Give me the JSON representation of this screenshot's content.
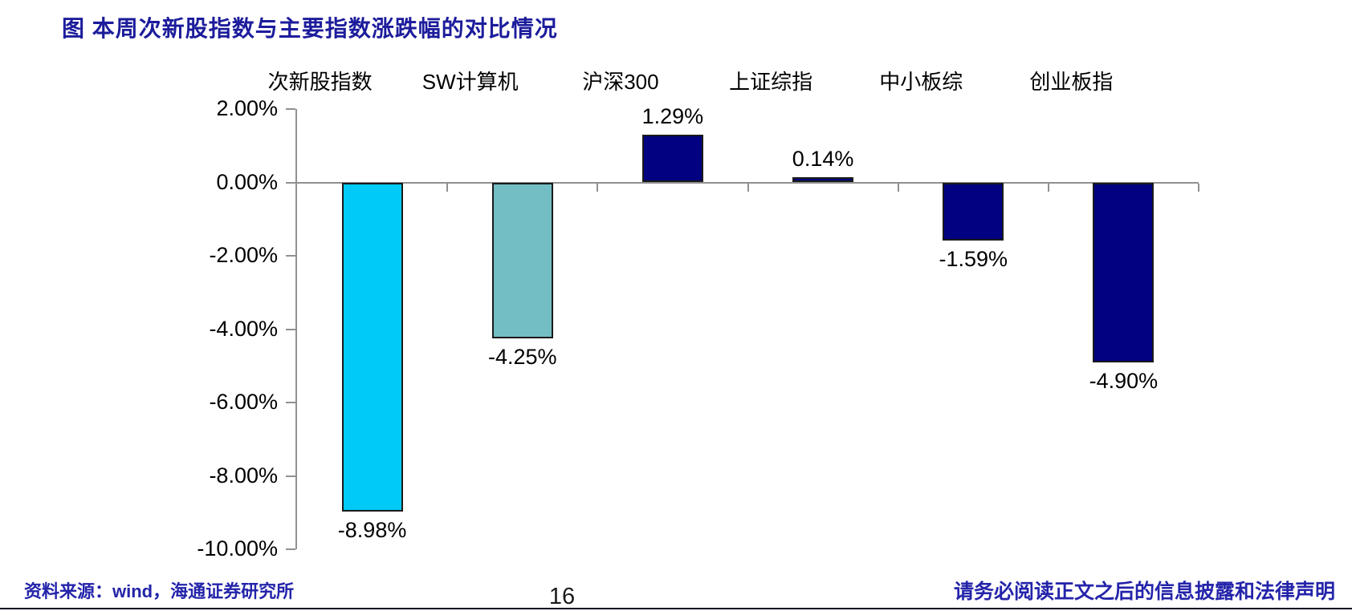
{
  "title": "图 本周次新股指数与主要指数涨跌幅的对比情况",
  "chart_data": {
    "type": "bar",
    "categories": [
      "次新股指数",
      "SW计算机",
      "沪深300",
      "上证综指",
      "中小板综",
      "创业板指"
    ],
    "values": [
      -8.98,
      -4.25,
      1.29,
      0.14,
      -1.59,
      -4.9
    ],
    "value_labels": [
      "-8.98%",
      "-4.25%",
      "1.29%",
      "0.14%",
      "-1.59%",
      "-4.90%"
    ],
    "bar_colors": [
      "#00CAF7",
      "#72BEC4",
      "#010181",
      "#010181",
      "#010181",
      "#010181"
    ],
    "title": "",
    "xlabel": "",
    "ylabel": "",
    "ylim": [
      -10,
      2
    ],
    "ytick_labels": [
      "2.00%",
      "0.00%",
      "-2.00%",
      "-4.00%",
      "-6.00%",
      "-8.00%",
      "-10.00%"
    ],
    "grid": false,
    "legend_position": "none"
  },
  "footer": {
    "source": "资料来源：wind，海通证券研究所",
    "page_number": "16",
    "disclaimer": "请务必阅读正文之后的信息披露和法律声明"
  },
  "colors": {
    "title_text": "#1C1C9C",
    "footer_text": "#2424AA",
    "axis": "#909090",
    "bar_border": "#1A1A1A"
  }
}
